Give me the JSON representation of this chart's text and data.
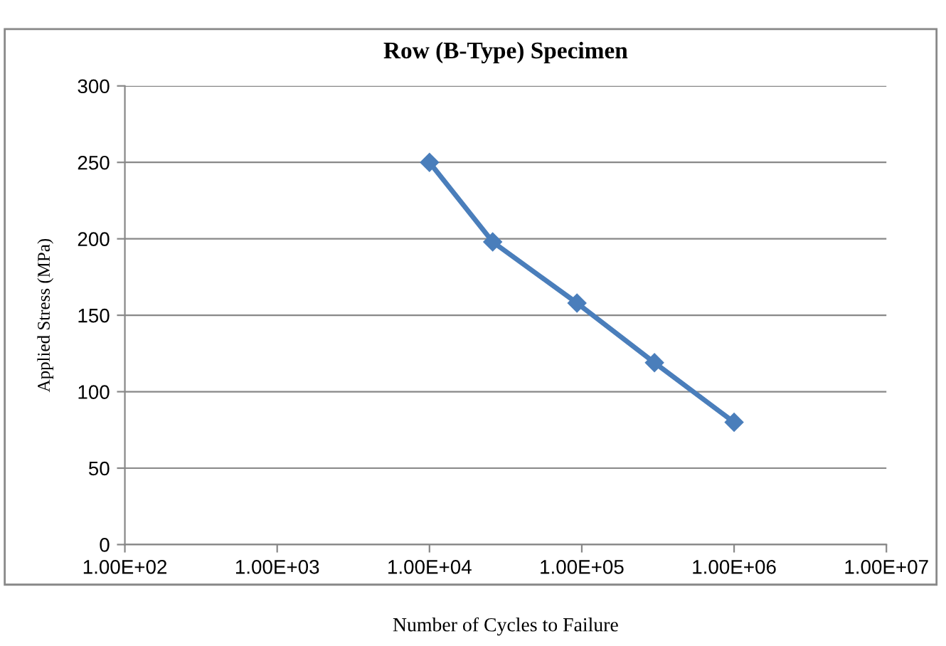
{
  "chart_data": {
    "type": "line",
    "title": "Row (B-Type) Specimen",
    "xlabel": "Number of Cycles to Failure",
    "ylabel": "Applied Stress (MPa)",
    "x": [
      10000,
      26000,
      93000,
      300000,
      1000000
    ],
    "series": [
      {
        "color": "#4a7ebb",
        "values": [
          250,
          198,
          158,
          119,
          80
        ]
      }
    ],
    "log": "x",
    "xlim": [
      100,
      10000000
    ],
    "xticks": [
      {
        "value": 100,
        "label": "1.00E+02"
      },
      {
        "value": 1000,
        "label": "1.00E+03"
      },
      {
        "value": 10000,
        "label": "1.00E+04"
      },
      {
        "value": 100000,
        "label": "1.00E+05"
      },
      {
        "value": 1000000,
        "label": "1.00E+06"
      },
      {
        "value": 10000000,
        "label": "1.00E+07"
      }
    ],
    "ylim": [
      0,
      300
    ],
    "yticks": [
      0,
      50,
      100,
      150,
      200,
      250,
      300
    ],
    "grid": "y",
    "marker": "diamond",
    "line_style": "solid",
    "legend": false
  }
}
